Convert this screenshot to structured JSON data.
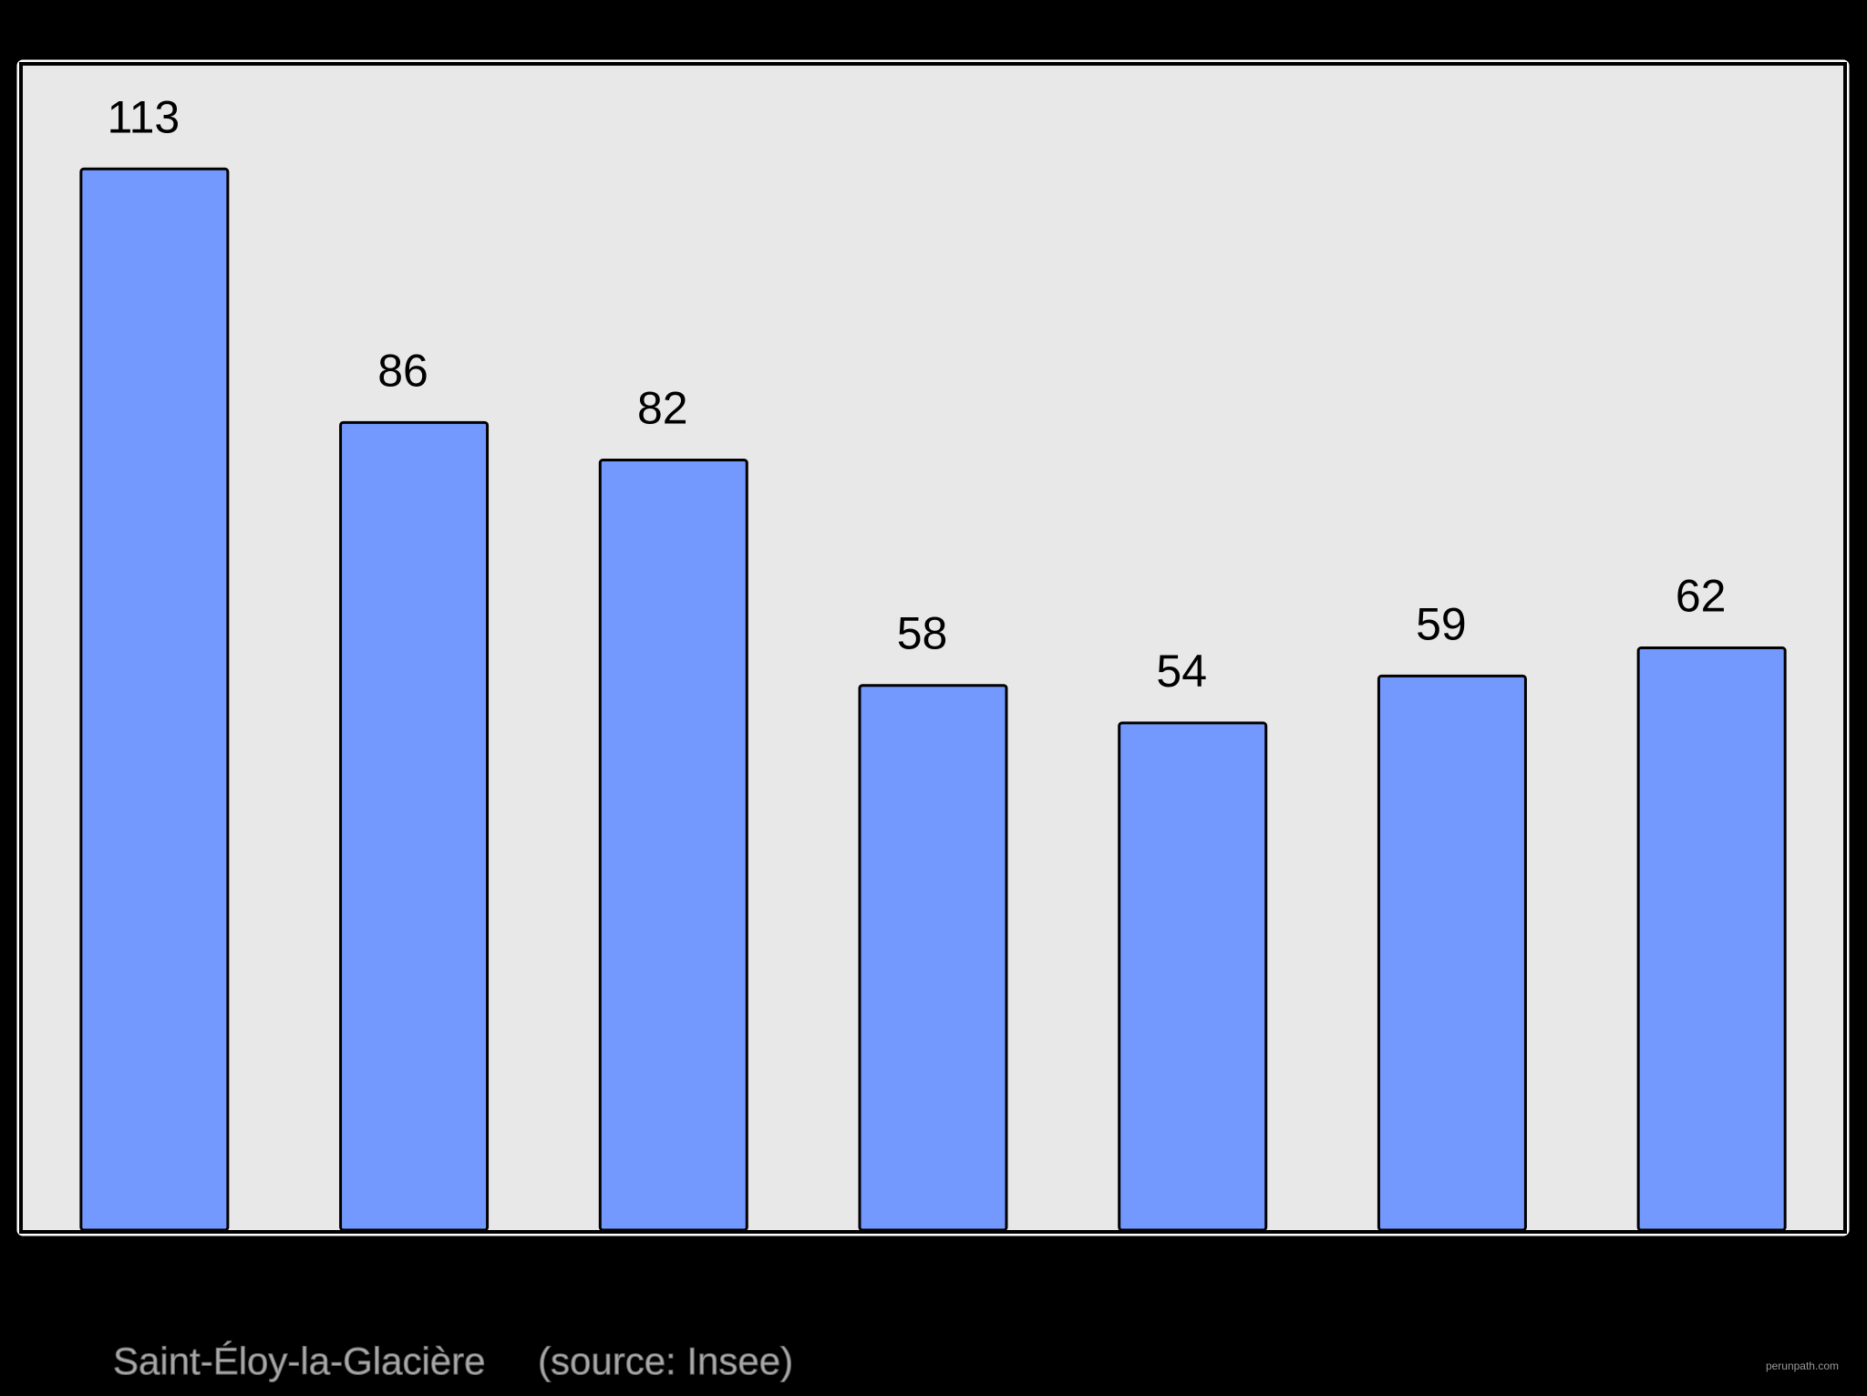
{
  "chart_data": {
    "type": "bar",
    "categories": [
      null,
      null,
      null,
      null,
      null,
      null,
      null
    ],
    "values": [
      113,
      86,
      82,
      58,
      54,
      59,
      62
    ],
    "color": "#7399ff",
    "ylim": [
      0,
      124
    ],
    "caption": "Saint-Éloy-la-Glacière",
    "source": "(source: Insee)",
    "watermark": "perunpath.com"
  }
}
